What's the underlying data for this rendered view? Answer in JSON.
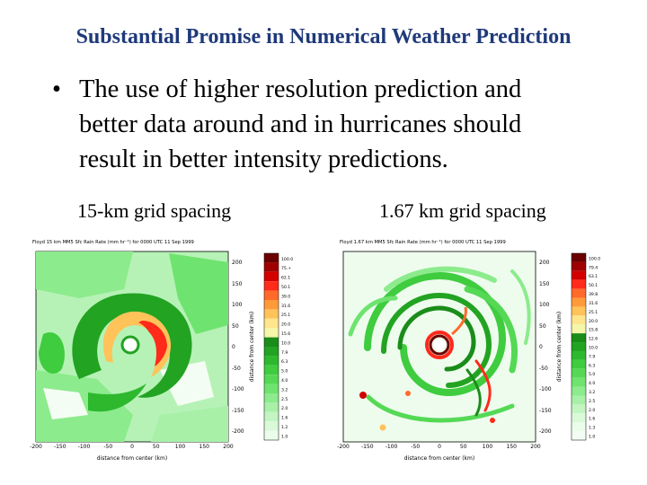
{
  "title": "Substantial Promise in Numerical Weather Prediction",
  "bullet": {
    "symbol": "•",
    "lines": [
      "The use of higher resolution prediction and",
      "better data around and in hurricanes should",
      "result in better intensity predictions."
    ]
  },
  "figures": [
    {
      "label": "15-km grid spacing",
      "header": "Floyd 15 km MM5 Sfc Rain Rate (mm hr⁻¹) for 0000 UTC 11 Sep 1999",
      "x_axis_label": "distance from center (km)",
      "y_axis_label": "distance from center (km)",
      "x_ticks": [
        "-200",
        "-150",
        "-100",
        "-50",
        "0",
        "50",
        "100",
        "150",
        "200"
      ],
      "y_ticks": [
        "200",
        "150",
        "100",
        "50",
        "0",
        "-50",
        "-100",
        "-150",
        "-200"
      ],
      "legend": [
        "100.0",
        "75.+",
        "62.1",
        "50.1",
        "39.0",
        "31.6",
        "25.1",
        "20.0",
        "15.6",
        "10.0",
        "7.9",
        "6.3",
        "5.0",
        "4.0",
        "3.2",
        "2.5",
        "2.0",
        "1.6",
        "1.2",
        "1.0"
      ]
    },
    {
      "label": "1.67 km grid spacing",
      "header": "Floyd 1.67 km MM5 Sfc Rain Rate (mm hr⁻¹) for 0000 UTC 11 Sep 1999",
      "x_axis_label": "distance from center (km)",
      "y_axis_label": "distance from center (km)",
      "x_ticks": [
        "-200",
        "-150",
        "-100",
        "-50",
        "0",
        "50",
        "100",
        "150",
        "200"
      ],
      "y_ticks": [
        "200",
        "150",
        "100",
        "50",
        "0",
        "-50",
        "-100",
        "-150",
        "-200"
      ],
      "legend": [
        "100.0",
        "79.4",
        "63.1",
        "50.1",
        "39.8",
        "31.6",
        "25.1",
        "20.0",
        "15.8",
        "12.6",
        "10.0",
        "7.9",
        "6.3",
        "5.0",
        "4.0",
        "3.2",
        "2.5",
        "2.0",
        "1.6",
        "1.3",
        "1.0"
      ]
    }
  ],
  "colors": {
    "title": "#1f3a7a",
    "rain_scale": [
      "#6b0000",
      "#a00000",
      "#d40000",
      "#ff2a1a",
      "#ff6a2a",
      "#ff9a3a",
      "#ffc35a",
      "#ffe58c",
      "#f4f6a8",
      "#1a8c1a",
      "#22a322",
      "#2eb82e",
      "#3fcc3f",
      "#55d955",
      "#6fe36f",
      "#8ceb8c",
      "#a8f0a8",
      "#c2f5c2",
      "#d9f9d9",
      "#eafcea",
      "#f4fdf4"
    ]
  }
}
